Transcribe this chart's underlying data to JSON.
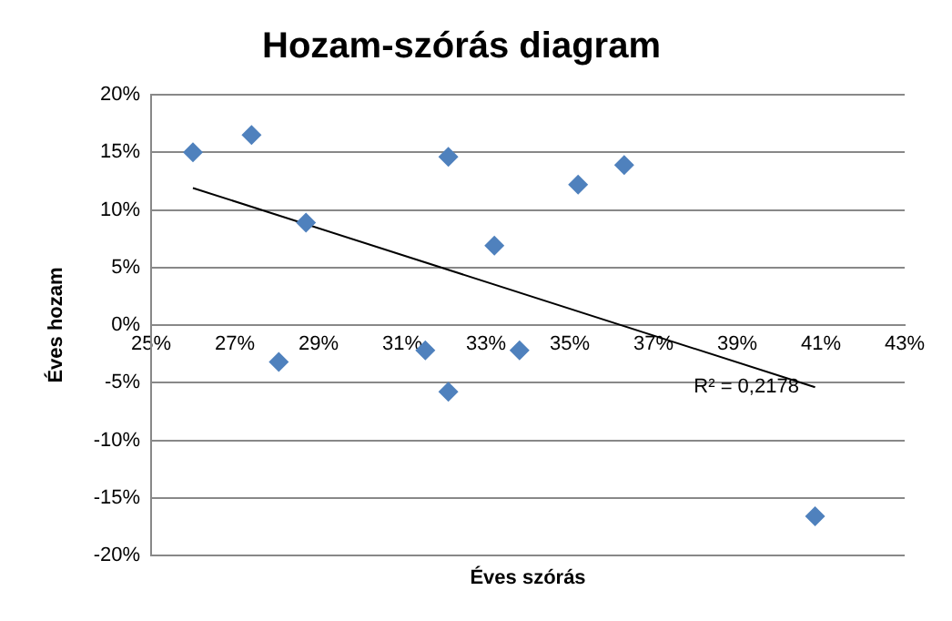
{
  "chart_data": {
    "type": "scatter",
    "title": "Hozam-szórás diagram",
    "xlabel": "Éves szórás",
    "ylabel": "Éves hozam",
    "xlim": [
      25,
      43
    ],
    "xticks": [
      {
        "value": 25,
        "label": "25%"
      },
      {
        "value": 27,
        "label": "27%"
      },
      {
        "value": 29,
        "label": "29%"
      },
      {
        "value": 31,
        "label": "31%"
      },
      {
        "value": 33,
        "label": "33%"
      },
      {
        "value": 35,
        "label": "35%"
      },
      {
        "value": 37,
        "label": "37%"
      },
      {
        "value": 39,
        "label": "39%"
      },
      {
        "value": 41,
        "label": "41%"
      },
      {
        "value": 43,
        "label": "43%"
      }
    ],
    "ylim": [
      -20,
      20
    ],
    "yticks": [
      {
        "value": -20,
        "label": "-20%"
      },
      {
        "value": -15,
        "label": "-15%"
      },
      {
        "value": -10,
        "label": "-10%"
      },
      {
        "value": -5,
        "label": "-5%"
      },
      {
        "value": 0,
        "label": "0%"
      },
      {
        "value": 5,
        "label": "5%"
      },
      {
        "value": 10,
        "label": "10%"
      },
      {
        "value": 15,
        "label": "15%"
      },
      {
        "value": 20,
        "label": "20%"
      }
    ],
    "grid": "y",
    "marker": "diamond",
    "series": [
      {
        "color": "#4f81bd",
        "x": [
          26.0,
          27.4,
          28.7,
          28.05,
          31.55,
          32.1,
          32.1,
          33.2,
          33.8,
          35.2,
          36.3,
          40.86
        ],
        "values": [
          15,
          16.5,
          8.9,
          -3.2,
          -2.2,
          14.6,
          -5.8,
          6.9,
          -2.2,
          12.2,
          13.9,
          -16.6
        ]
      },
      {
        "type": "line",
        "color": "#000000",
        "marker": "none",
        "x": [
          26.0,
          40.86
        ],
        "values": [
          11.9,
          -5.4
        ]
      }
    ],
    "annotations": [
      "R² = 0,2178"
    ]
  }
}
